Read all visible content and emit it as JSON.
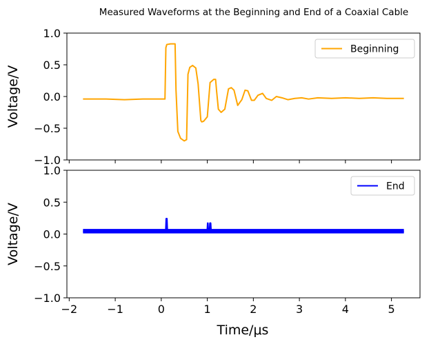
{
  "chart_data": {
    "type": "line",
    "title": "Measured Waveforms at the Beginning and End of a Coaxial Cable",
    "xlabel": "Time/μs",
    "xlim": [
      -2.05,
      5.62
    ],
    "x_ticks": [
      -2,
      -1,
      0,
      1,
      2,
      3,
      4,
      5
    ],
    "x_tick_labels": [
      "−2",
      "−1",
      "0",
      "1",
      "2",
      "3",
      "4",
      "5"
    ],
    "panels": [
      {
        "id": "top",
        "ylabel": "Voltage/V",
        "ylim": [
          -1.0,
          1.0
        ],
        "y_ticks": [
          -1.0,
          -0.5,
          0.0,
          0.5,
          1.0
        ],
        "y_tick_labels": [
          "−1.0",
          "−0.5",
          "0.0",
          "0.5",
          "1.0"
        ],
        "legend": "top-right",
        "series": [
          {
            "name": "Beginning",
            "color": "#ffa500",
            "x": [
              -1.7,
              -1.2,
              -0.8,
              -0.4,
              0.0,
              0.08,
              0.1,
              0.12,
              0.2,
              0.3,
              0.32,
              0.36,
              0.42,
              0.5,
              0.55,
              0.58,
              0.62,
              0.68,
              0.75,
              0.8,
              0.86,
              0.88,
              0.92,
              1.0,
              1.06,
              1.14,
              1.18,
              1.2,
              1.24,
              1.3,
              1.38,
              1.46,
              1.52,
              1.58,
              1.66,
              1.75,
              1.82,
              1.88,
              1.96,
              2.02,
              2.1,
              2.2,
              2.28,
              2.4,
              2.5,
              2.62,
              2.75,
              2.9,
              3.05,
              3.2,
              3.4,
              3.7,
              4.0,
              4.3,
              4.6,
              4.9,
              5.27
            ],
            "values": [
              -0.04,
              -0.04,
              -0.05,
              -0.04,
              -0.04,
              -0.04,
              0.77,
              0.82,
              0.83,
              0.83,
              0.1,
              -0.55,
              -0.66,
              -0.7,
              -0.68,
              0.35,
              0.46,
              0.49,
              0.45,
              0.2,
              -0.38,
              -0.4,
              -0.39,
              -0.32,
              0.22,
              0.27,
              0.27,
              0.1,
              -0.2,
              -0.25,
              -0.2,
              0.12,
              0.14,
              0.1,
              -0.14,
              -0.05,
              0.1,
              0.09,
              -0.06,
              -0.06,
              0.02,
              0.05,
              -0.03,
              -0.06,
              0.0,
              -0.02,
              -0.05,
              -0.03,
              -0.02,
              -0.04,
              -0.02,
              -0.03,
              -0.02,
              -0.03,
              -0.02,
              -0.03,
              -0.03
            ]
          }
        ]
      },
      {
        "id": "bottom",
        "ylabel": "Voltage/V",
        "ylim": [
          -1.0,
          1.0
        ],
        "y_ticks": [
          -1.0,
          -0.5,
          0.0,
          0.5,
          1.0
        ],
        "y_tick_labels": [
          "−1.0",
          "−0.5",
          "0.0",
          "0.5",
          "1.0"
        ],
        "legend": "top-right",
        "series": [
          {
            "name": "End",
            "color": "#0000ff",
            "x": [
              -1.7,
              0.1,
              0.11,
              0.12,
              0.13,
              1.0,
              1.01,
              1.02,
              1.05,
              1.06,
              1.07,
              1.08,
              5.27
            ],
            "values": [
              0.04,
              0.04,
              0.24,
              0.24,
              0.04,
              0.04,
              0.17,
              0.04,
              0.04,
              0.17,
              0.17,
              0.04,
              0.04
            ],
            "noise_band": [
              0.01,
              0.08
            ]
          }
        ]
      }
    ]
  }
}
